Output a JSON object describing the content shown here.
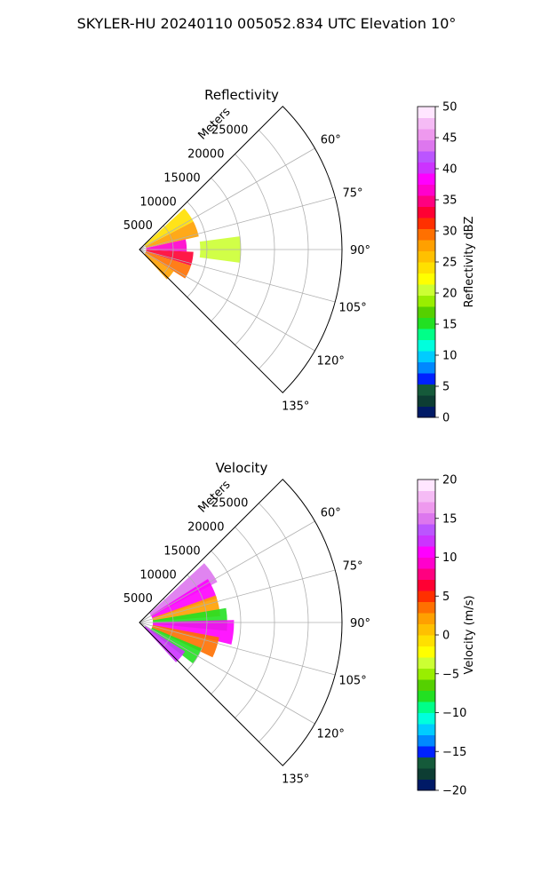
{
  "figure": {
    "title": "SKYLER-HU  20240110  005052.834 UTC Elevation 10°",
    "range_label": "Meters"
  },
  "chart_data": [
    {
      "type": "heatmap",
      "projection": "polar",
      "title": "Reflectivity",
      "azimuth_range_deg": [
        45,
        135
      ],
      "azimuth_ticks": [
        "60°",
        "75°",
        "90°",
        "105°",
        "120°",
        "135°"
      ],
      "range_ticks": [
        "5000",
        "10000",
        "15000",
        "20000",
        "25000"
      ],
      "range_max_m": 30000,
      "data_extent_m": 16000,
      "colorbar": {
        "label": "Reflectivity dBZ",
        "min": 0,
        "max": 50,
        "ticks": [
          "0",
          "5",
          "10",
          "15",
          "20",
          "25",
          "30",
          "35",
          "40",
          "45",
          "50"
        ],
        "colors": [
          "#001a66",
          "#0d3d33",
          "#155a3a",
          "#0022ff",
          "#0088ff",
          "#00ccff",
          "#00ffdd",
          "#00ff88",
          "#22e022",
          "#55d000",
          "#99ee00",
          "#ccff33",
          "#ffff00",
          "#ffe000",
          "#ffc000",
          "#ffa000",
          "#ff7000",
          "#ff3000",
          "#ff0033",
          "#ff0080",
          "#ff00cc",
          "#ff00ff",
          "#cc33ff",
          "#bb55ff",
          "#dd77ee",
          "#ee99ee",
          "#f5bbf5",
          "#ffe6ff"
        ]
      },
      "field_summary": [
        {
          "azimuth_deg": 55,
          "range_m": [
            1000,
            9000
          ],
          "value": 24
        },
        {
          "azimuth_deg": 70,
          "range_m": [
            1000,
            9000
          ],
          "value": 27
        },
        {
          "azimuth_deg": 85,
          "range_m": [
            1000,
            7000
          ],
          "value": 36
        },
        {
          "azimuth_deg": 100,
          "range_m": [
            1000,
            8000
          ],
          "value": 33
        },
        {
          "azimuth_deg": 115,
          "range_m": [
            1000,
            8000
          ],
          "value": 30
        },
        {
          "azimuth_deg": 130,
          "range_m": [
            1000,
            6000
          ],
          "value": 28
        },
        {
          "azimuth_deg": 90,
          "range_m": [
            9000,
            15000
          ],
          "value": 20
        }
      ]
    },
    {
      "type": "heatmap",
      "projection": "polar",
      "title": "Velocity",
      "azimuth_range_deg": [
        45,
        135
      ],
      "azimuth_ticks": [
        "60°",
        "75°",
        "90°",
        "105°",
        "120°",
        "135°"
      ],
      "range_ticks": [
        "5000",
        "10000",
        "15000",
        "20000",
        "25000"
      ],
      "range_max_m": 30000,
      "data_extent_m": 16000,
      "colorbar": {
        "label": "Velocity (m/s)",
        "min": -20,
        "max": 20,
        "ticks": [
          "−20",
          "−15",
          "−10",
          "−5",
          "0",
          "5",
          "10",
          "15",
          "20"
        ],
        "colors": [
          "#001a66",
          "#0d3d33",
          "#155a3a",
          "#0022ff",
          "#0088ff",
          "#00ccff",
          "#00ffdd",
          "#00ff88",
          "#22e022",
          "#55d000",
          "#99ee00",
          "#ccff33",
          "#ffff00",
          "#ffe000",
          "#ffc000",
          "#ffa000",
          "#ff7000",
          "#ff3000",
          "#ff0033",
          "#ff0080",
          "#ff00cc",
          "#ff00ff",
          "#cc33ff",
          "#bb55ff",
          "#dd77ee",
          "#ee99ee",
          "#f5bbf5",
          "#ffe6ff"
        ]
      },
      "field_summary": [
        {
          "azimuth_deg": 55,
          "range_m": [
            2000,
            13000
          ],
          "value": 15
        },
        {
          "azimuth_deg": 65,
          "range_m": [
            2000,
            12000
          ],
          "value": 10
        },
        {
          "azimuth_deg": 78,
          "range_m": [
            2000,
            12000
          ],
          "value": 2
        },
        {
          "azimuth_deg": 88,
          "range_m": [
            2000,
            13000
          ],
          "value": -8
        },
        {
          "azimuth_deg": 96,
          "range_m": [
            2000,
            14000
          ],
          "value": 11
        },
        {
          "azimuth_deg": 108,
          "range_m": [
            2000,
            12000
          ],
          "value": 4
        },
        {
          "azimuth_deg": 120,
          "range_m": [
            2000,
            10000
          ],
          "value": -8
        },
        {
          "azimuth_deg": 130,
          "range_m": [
            1000,
            8000
          ],
          "value": 12
        }
      ]
    }
  ]
}
